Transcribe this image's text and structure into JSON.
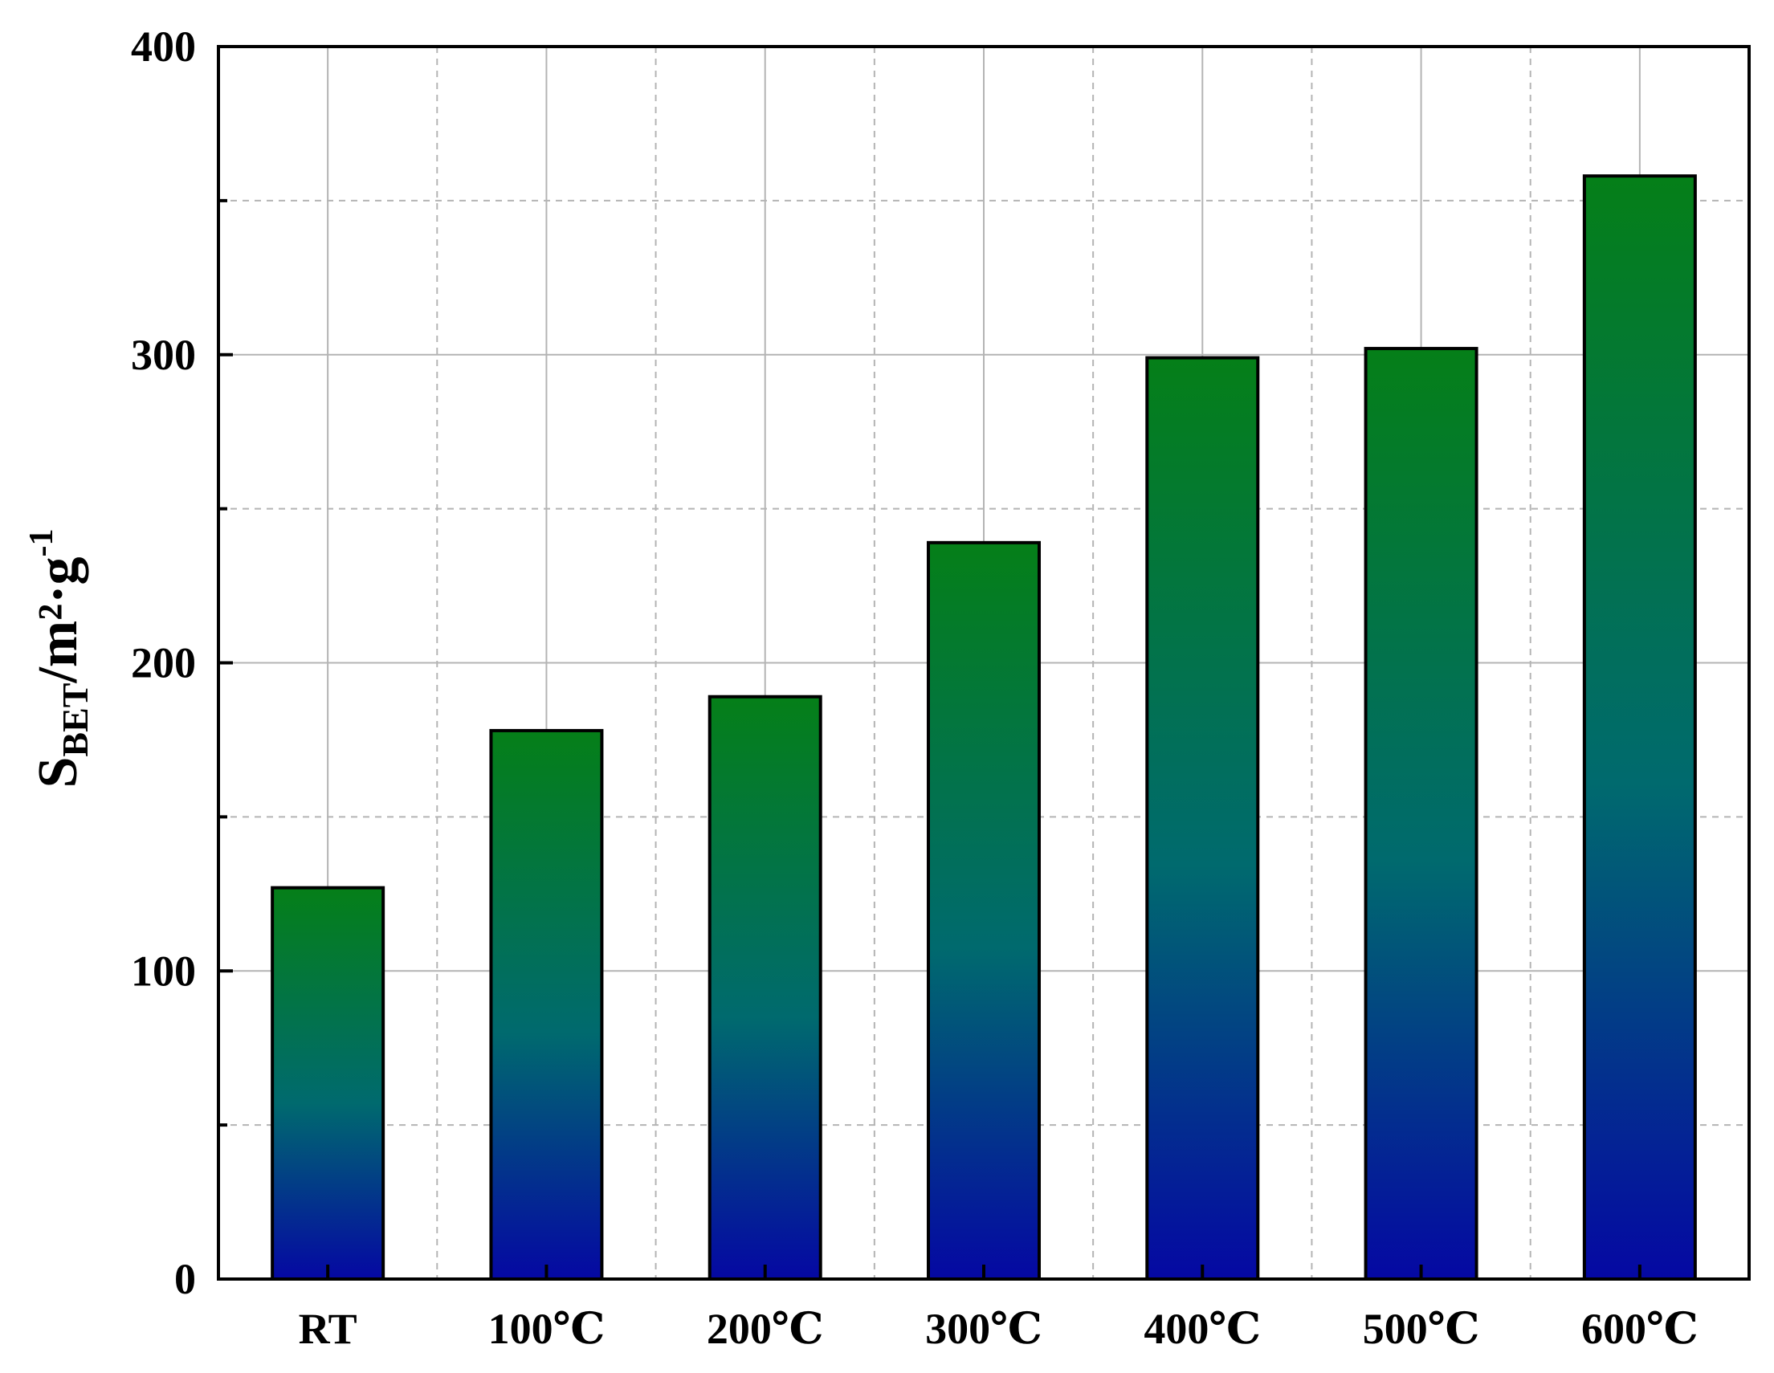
{
  "chart_data": {
    "type": "bar",
    "title": "",
    "xlabel": "",
    "ylabel": {
      "main": "S",
      "subscript": "BET",
      "unit": "/m²·g",
      "superscript": "-1"
    },
    "categories": [
      "RT",
      "100℃",
      "200℃",
      "300℃",
      "400℃",
      "500℃",
      "600℃"
    ],
    "values": [
      127,
      178,
      189,
      239,
      299,
      302,
      358
    ],
    "ylim": [
      0,
      400
    ],
    "yticks": [
      0,
      100,
      200,
      300,
      400
    ],
    "yticks_labels": [
      "0",
      "100",
      "200",
      "300",
      "400"
    ],
    "grid": true,
    "legend": "none",
    "bar_gradient": {
      "top": "#057f18",
      "middle": "#006a6e",
      "bottom": "#0508a3"
    },
    "axis_color": "#000000",
    "grid_color": "#b4b4b4"
  }
}
